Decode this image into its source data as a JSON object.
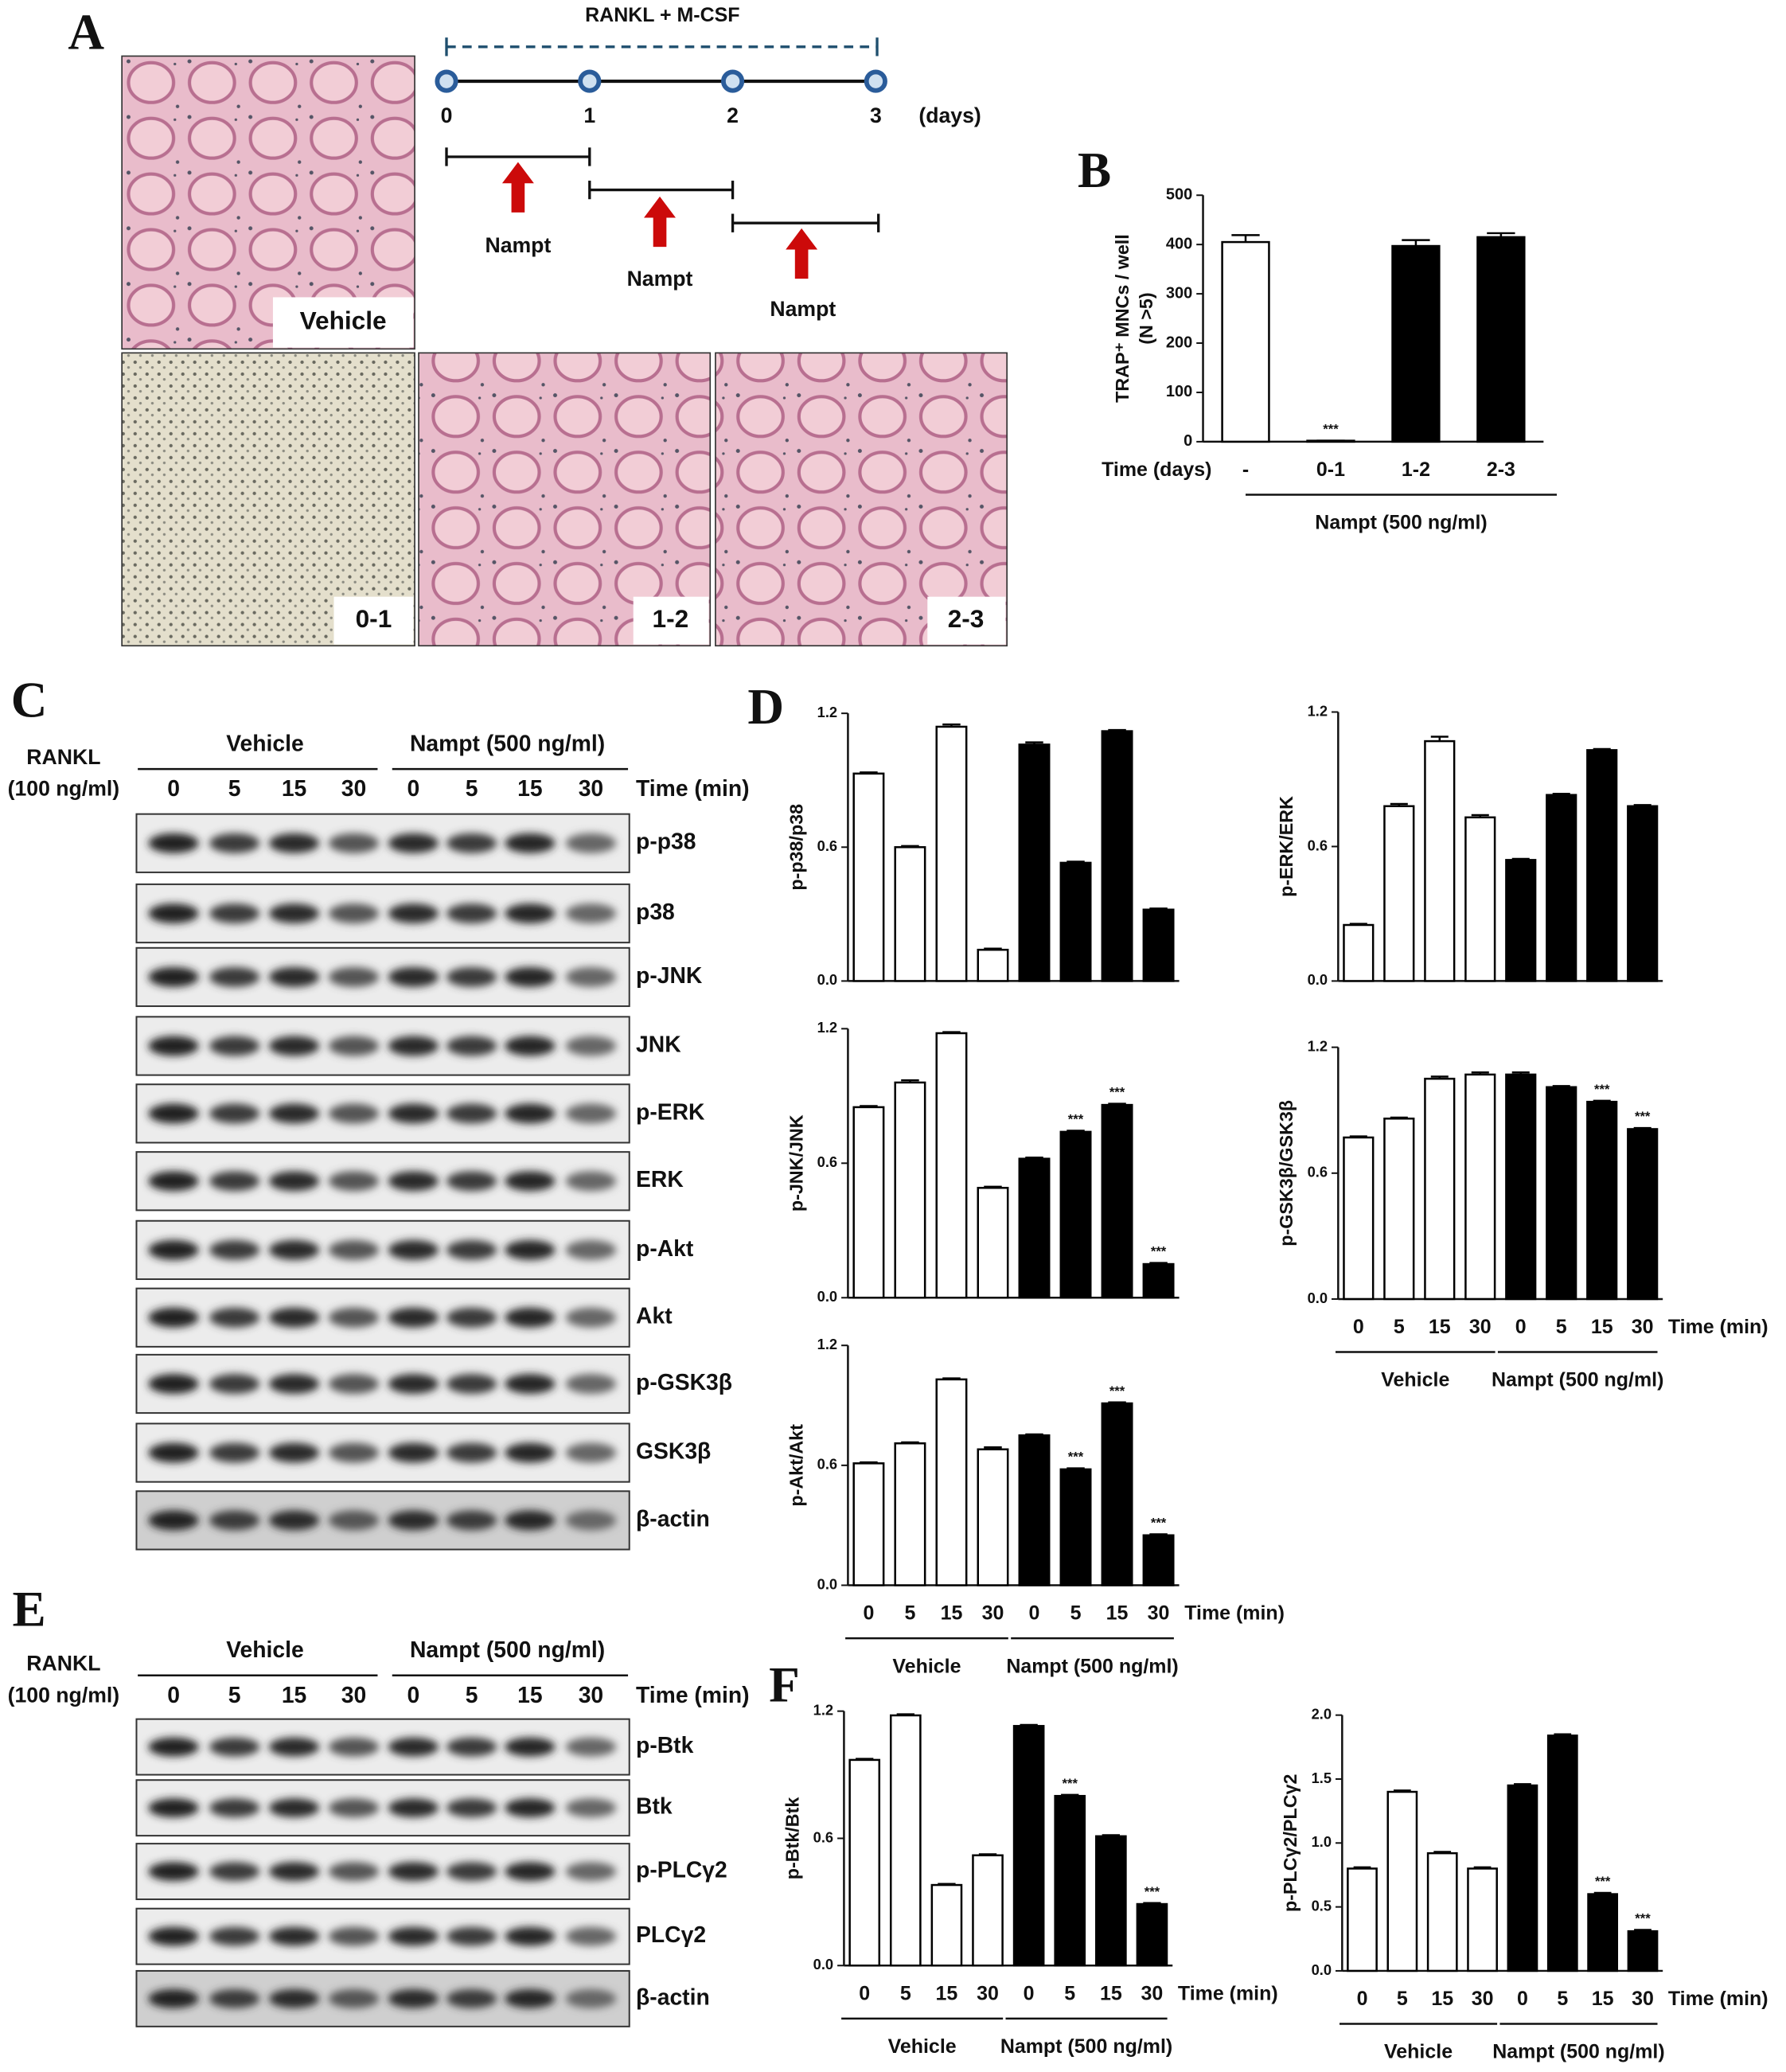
{
  "panel_labels": [
    "A",
    "B",
    "C",
    "D",
    "E",
    "F"
  ],
  "panel_a": {
    "timeline_label": "RANKL + M-CSF",
    "days": [
      "0",
      "1",
      "2",
      "3"
    ],
    "days_unit": "(days)",
    "treatments": [
      "Nampt",
      "Nampt",
      "Nampt"
    ],
    "images": [
      "Vehicle",
      "0-1",
      "1-2",
      "2-3"
    ]
  },
  "blot_c": {
    "treatment_label": "RANKL",
    "treatment_dose": "(100 ng/ml)",
    "groups": [
      "Vehicle",
      "Nampt (500 ng/ml)"
    ],
    "times": [
      "0",
      "5",
      "15",
      "30",
      "0",
      "5",
      "15",
      "30"
    ],
    "time_label": "Time (min)",
    "rows": [
      "p-p38",
      "p38",
      "p-JNK",
      "JNK",
      "p-ERK",
      "ERK",
      "p-Akt",
      "Akt",
      "p-GSK3β",
      "GSK3β",
      "β-actin"
    ]
  },
  "blot_e": {
    "treatment_label": "RANKL",
    "treatment_dose": "(100 ng/ml)",
    "groups": [
      "Vehicle",
      "Nampt (500 ng/ml)"
    ],
    "times": [
      "0",
      "5",
      "15",
      "30",
      "0",
      "5",
      "15",
      "30"
    ],
    "time_label": "Time (min)",
    "rows": [
      "p-Btk",
      "Btk",
      "p-PLCγ2",
      "PLCγ2",
      "β-actin"
    ]
  },
  "chart_data": [
    {
      "type": "bar",
      "ylabel": [
        "TRAP⁺ MNCs / well",
        "(N >5)"
      ],
      "xlabel": "Time (days)",
      "categories": [
        "-",
        "0-1",
        "1-2",
        "2-3"
      ],
      "values": [
        405,
        2,
        397,
        415
      ],
      "errors": [
        14,
        0,
        12,
        8
      ],
      "significance": [
        null,
        "***",
        null,
        null
      ],
      "bar_colors": [
        "#ffffff",
        "#000000",
        "#000000",
        "#000000"
      ],
      "groups": [
        "Nampt (500 ng/ml)"
      ],
      "ylim": [
        0,
        500
      ],
      "yticks": [
        0,
        100,
        200,
        300,
        400,
        500
      ]
    },
    {
      "type": "bar",
      "ylabel": "p-p38/p38",
      "categories": [
        null,
        null,
        null,
        null,
        null,
        null,
        null,
        null
      ],
      "values": [
        0.93,
        0.6,
        1.14,
        0.14,
        1.06,
        0.53,
        1.12,
        0.32
      ],
      "errors": [
        0.005,
        0.005,
        0.01,
        0.005,
        0.01,
        0.005,
        0.005,
        0.005
      ],
      "bar_colors": [
        "#ffffff",
        "#ffffff",
        "#ffffff",
        "#ffffff",
        "#000000",
        "#000000",
        "#000000",
        "#000000"
      ],
      "ylim": [
        0,
        1.2
      ],
      "yticks": [
        {
          "value": 0,
          "label": "0.0"
        },
        0.6,
        1.2
      ]
    },
    {
      "type": "bar",
      "ylabel": "p-ERK/ERK",
      "categories": [
        null,
        null,
        null,
        null,
        null,
        null,
        null,
        null
      ],
      "values": [
        0.25,
        0.78,
        1.07,
        0.73,
        0.54,
        0.83,
        1.03,
        0.78
      ],
      "errors": [
        0.005,
        0.01,
        0.02,
        0.01,
        0.005,
        0.005,
        0.005,
        0.005
      ],
      "bar_colors": [
        "#ffffff",
        "#ffffff",
        "#ffffff",
        "#ffffff",
        "#000000",
        "#000000",
        "#000000",
        "#000000"
      ],
      "ylim": [
        0,
        1.2
      ],
      "yticks": [
        {
          "value": 0,
          "label": "0.0"
        },
        0.6,
        1.2
      ]
    },
    {
      "type": "bar",
      "ylabel": "p-JNK/JNK",
      "categories": [
        null,
        null,
        null,
        null,
        null,
        null,
        null,
        null
      ],
      "values": [
        0.85,
        0.96,
        1.18,
        0.49,
        0.62,
        0.74,
        0.86,
        0.15
      ],
      "errors": [
        0.005,
        0.01,
        0.005,
        0.005,
        0.005,
        0.005,
        0.005,
        0.005
      ],
      "significance": [
        null,
        null,
        null,
        null,
        null,
        "***",
        "***",
        "***"
      ],
      "bar_colors": [
        "#ffffff",
        "#ffffff",
        "#ffffff",
        "#ffffff",
        "#000000",
        "#000000",
        "#000000",
        "#000000"
      ],
      "ylim": [
        0,
        1.2
      ],
      "yticks": [
        {
          "value": 0,
          "label": "0.0"
        },
        0.6,
        1.2
      ]
    },
    {
      "type": "bar",
      "ylabel": "p-GSK3β/GSK3β",
      "xlabel": "Time (min)",
      "categories": [
        "0",
        "5",
        "15",
        "30",
        "0",
        "5",
        "15",
        "30"
      ],
      "values": [
        0.77,
        0.86,
        1.05,
        1.07,
        1.07,
        1.01,
        0.94,
        0.81
      ],
      "errors": [
        0.005,
        0.005,
        0.01,
        0.01,
        0.01,
        0.005,
        0.005,
        0.005
      ],
      "significance": [
        null,
        null,
        null,
        null,
        null,
        null,
        "***",
        "***"
      ],
      "bar_colors": [
        "#ffffff",
        "#ffffff",
        "#ffffff",
        "#ffffff",
        "#000000",
        "#000000",
        "#000000",
        "#000000"
      ],
      "groups": [
        "Vehicle",
        "Nampt (500 ng/ml)"
      ],
      "ylim": [
        0,
        1.2
      ],
      "yticks": [
        {
          "value": 0,
          "label": "0.0"
        },
        0.6,
        1.2
      ]
    },
    {
      "type": "bar",
      "ylabel": "p-Akt/Akt",
      "xlabel": "Time (min)",
      "categories": [
        "0",
        "5",
        "15",
        "30",
        "0",
        "5",
        "15",
        "30"
      ],
      "values": [
        0.61,
        0.71,
        1.03,
        0.68,
        0.75,
        0.58,
        0.91,
        0.25
      ],
      "errors": [
        0.005,
        0.005,
        0.005,
        0.01,
        0.005,
        0.005,
        0.005,
        0.005
      ],
      "significance": [
        null,
        null,
        null,
        null,
        null,
        "***",
        "***",
        "***"
      ],
      "bar_colors": [
        "#ffffff",
        "#ffffff",
        "#ffffff",
        "#ffffff",
        "#000000",
        "#000000",
        "#000000",
        "#000000"
      ],
      "groups": [
        "Vehicle",
        "Nampt (500 ng/ml)"
      ],
      "ylim": [
        0,
        1.2
      ],
      "yticks": [
        {
          "value": 0,
          "label": "0.0"
        },
        0.6,
        1.2
      ]
    },
    {
      "type": "bar",
      "ylabel": "p-Btk/Btk",
      "xlabel": "Time (min)",
      "categories": [
        "0",
        "5",
        "15",
        "30",
        "0",
        "5",
        "15",
        "30"
      ],
      "values": [
        0.97,
        1.18,
        0.38,
        0.52,
        1.13,
        0.8,
        0.61,
        0.29
      ],
      "errors": [
        0.005,
        0.005,
        0.005,
        0.005,
        0.005,
        0.005,
        0.005,
        0.005
      ],
      "significance": [
        null,
        null,
        null,
        null,
        null,
        "***",
        null,
        "***"
      ],
      "bar_colors": [
        "#ffffff",
        "#ffffff",
        "#ffffff",
        "#ffffff",
        "#000000",
        "#000000",
        "#000000",
        "#000000"
      ],
      "groups": [
        "Vehicle",
        "Nampt (500 ng/ml)"
      ],
      "ylim": [
        0,
        1.2
      ],
      "yticks": [
        {
          "value": 0,
          "label": "0.0"
        },
        0.6,
        1.2
      ]
    },
    {
      "type": "bar",
      "ylabel": "p-PLCγ2/PLCγ2",
      "xlabel": "Time (min)",
      "categories": [
        "0",
        "5",
        "15",
        "30",
        "0",
        "5",
        "15",
        "30"
      ],
      "values": [
        0.8,
        1.4,
        0.92,
        0.8,
        1.45,
        1.84,
        0.6,
        0.31
      ],
      "errors": [
        0.01,
        0.01,
        0.01,
        0.01,
        0.01,
        0.01,
        0.01,
        0.01
      ],
      "significance": [
        null,
        null,
        null,
        null,
        null,
        null,
        "***",
        "***"
      ],
      "bar_colors": [
        "#ffffff",
        "#ffffff",
        "#ffffff",
        "#ffffff",
        "#000000",
        "#000000",
        "#000000",
        "#000000"
      ],
      "groups": [
        "Vehicle",
        "Nampt (500 ng/ml)"
      ],
      "ylim": [
        0,
        2
      ],
      "yticks": [
        {
          "value": 0,
          "label": "0.0"
        },
        {
          "value": 0.5,
          "label": "0.5"
        },
        {
          "value": 1,
          "label": "1.0"
        },
        {
          "value": 1.5,
          "label": "1.5"
        },
        {
          "value": 2,
          "label": "2.0"
        }
      ]
    }
  ]
}
